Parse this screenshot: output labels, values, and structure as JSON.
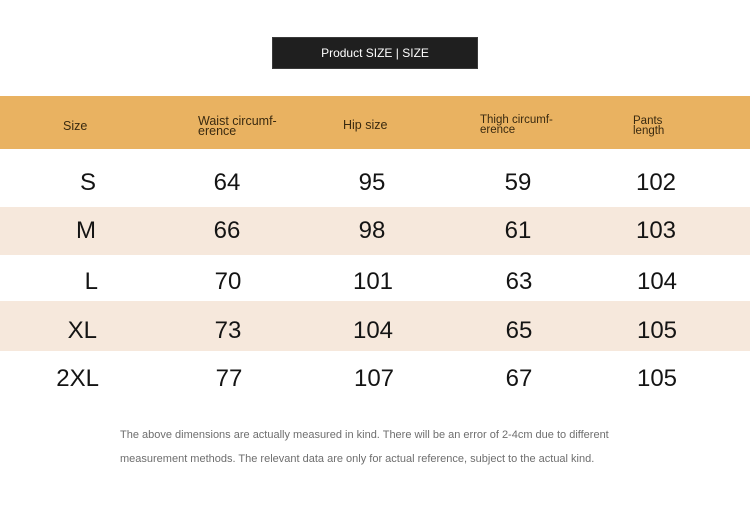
{
  "title": "Product SIZE | SIZE",
  "headers": {
    "size": "Size",
    "waist_line1": "Waist circumf-",
    "waist_line2": "erence",
    "hip": "Hip size",
    "thigh_line1": "Thigh circumf-",
    "thigh_line2": "erence",
    "pants_line1": "Pants",
    "pants_line2": "length"
  },
  "rows": [
    {
      "size": "S",
      "waist": "64",
      "hip": "95",
      "thigh": "59",
      "length": "102"
    },
    {
      "size": "M",
      "waist": "66",
      "hip": "98",
      "thigh": "61",
      "length": "103"
    },
    {
      "size": "L",
      "waist": "70",
      "hip": "101",
      "thigh": "63",
      "length": "104"
    },
    {
      "size": "XL",
      "waist": "73",
      "hip": "104",
      "thigh": "65",
      "length": "105"
    },
    {
      "size": "2XL",
      "waist": "77",
      "hip": "107",
      "thigh": "67",
      "length": "105"
    }
  ],
  "note": {
    "line1": "The above dimensions are actually measured in kind. There will be an error of 2-4cm due to different",
    "line2": "measurement methods. The relevant data are only for actual reference, subject to the actual kind."
  },
  "colors": {
    "header_band": "#e9b261",
    "alt_row": "#f6e8dc",
    "title_box": "#1f1f1f"
  }
}
